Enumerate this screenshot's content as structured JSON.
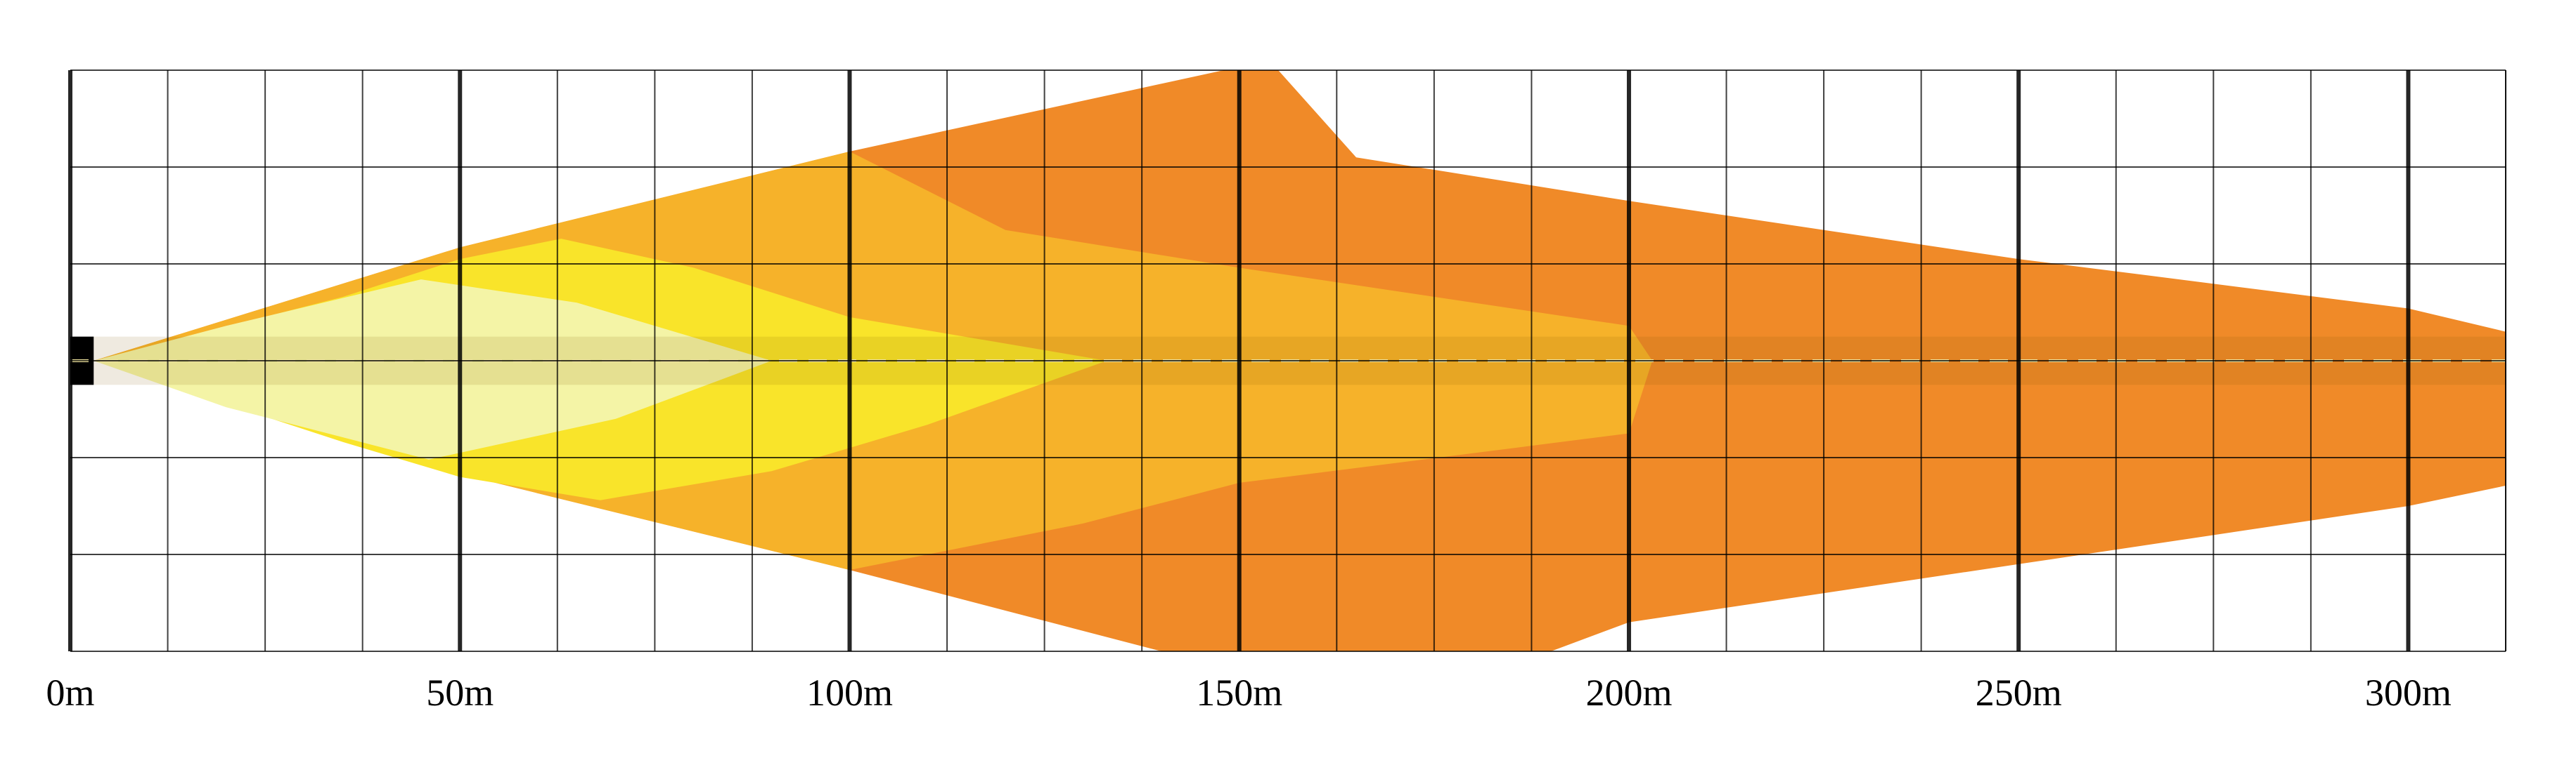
{
  "chart_data": {
    "type": "area",
    "title": "",
    "xlabel": "",
    "ylabel": "",
    "x_unit": "m",
    "xlim": [
      0,
      312.5
    ],
    "ylim": [
      -1,
      1
    ],
    "grid": true,
    "x_ticks": [
      0,
      50,
      100,
      150,
      200,
      250,
      300
    ],
    "x_tick_labels": [
      "0m",
      "50m",
      "100m",
      "150m",
      "200m",
      "250m",
      "300m"
    ],
    "x_minor_step": 12.5,
    "y_divisions": 6,
    "centerline": {
      "style": "dashed",
      "color": "#f2e6a0"
    },
    "road_band": {
      "half_width": 0.083
    },
    "series": [
      {
        "color": "#f08a28",
        "upper": [
          [
            3,
            0.0
          ],
          [
            50,
            0.39
          ],
          [
            100,
            0.72
          ],
          [
            148,
            1.0
          ],
          [
            155,
            1.0
          ],
          [
            165,
            0.7
          ],
          [
            200,
            0.55
          ],
          [
            250,
            0.35
          ],
          [
            300,
            0.18
          ],
          [
            312.5,
            0.1
          ]
        ],
        "lower": [
          [
            3,
            0.0
          ],
          [
            50,
            -0.39
          ],
          [
            100,
            -0.72
          ],
          [
            140,
            -1.0
          ],
          [
            190,
            -1.0
          ],
          [
            200,
            -0.9
          ],
          [
            250,
            -0.7
          ],
          [
            300,
            -0.5
          ],
          [
            312.5,
            -0.43
          ]
        ]
      },
      {
        "color": "#f6b22a",
        "upper": [
          [
            3,
            0.0
          ],
          [
            50,
            0.39
          ],
          [
            100,
            0.72
          ],
          [
            120,
            0.45
          ],
          [
            150,
            0.32
          ],
          [
            200,
            0.12
          ],
          [
            203,
            0.0
          ]
        ],
        "lower": [
          [
            3,
            0.0
          ],
          [
            50,
            -0.39
          ],
          [
            100,
            -0.72
          ],
          [
            130,
            -0.56
          ],
          [
            150,
            -0.42
          ],
          [
            200,
            -0.25
          ],
          [
            203,
            0.0
          ]
        ]
      },
      {
        "color": "#f9e42a",
        "upper": [
          [
            3,
            0.0
          ],
          [
            35,
            0.22
          ],
          [
            50,
            0.35
          ],
          [
            63,
            0.42
          ],
          [
            80,
            0.32
          ],
          [
            100,
            0.15
          ],
          [
            133,
            0.0
          ]
        ],
        "lower": [
          [
            3,
            0.0
          ],
          [
            35,
            -0.28
          ],
          [
            50,
            -0.4
          ],
          [
            68,
            -0.48
          ],
          [
            90,
            -0.38
          ],
          [
            110,
            -0.22
          ],
          [
            133,
            0.0
          ]
        ]
      },
      {
        "color": "#f4f4a6",
        "upper": [
          [
            3,
            0.0
          ],
          [
            20,
            0.12
          ],
          [
            45,
            0.28
          ],
          [
            65,
            0.2
          ],
          [
            90,
            0.0
          ]
        ],
        "lower": [
          [
            3,
            0.0
          ],
          [
            20,
            -0.16
          ],
          [
            46,
            -0.34
          ],
          [
            70,
            -0.2
          ],
          [
            90,
            0.0
          ]
        ]
      }
    ]
  }
}
